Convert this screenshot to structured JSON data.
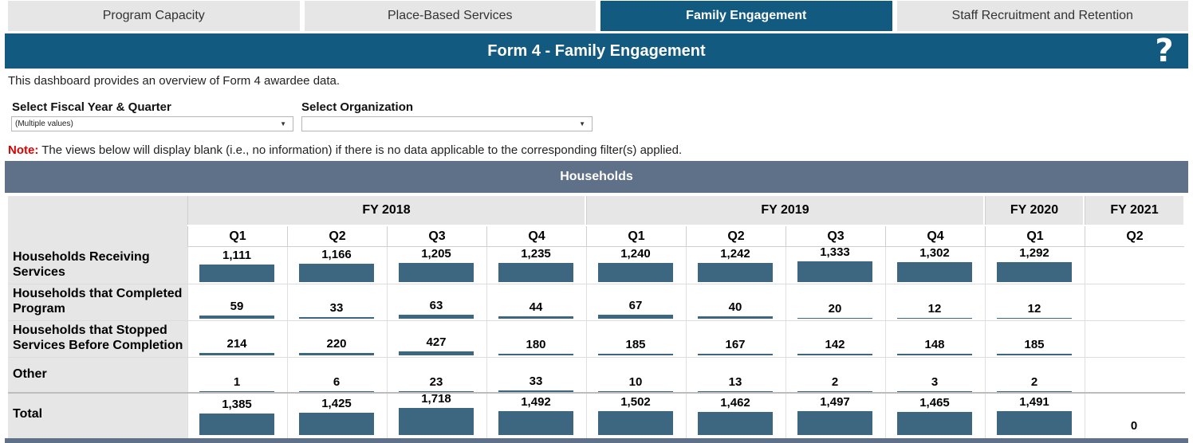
{
  "tabs": [
    {
      "label": "Program Capacity",
      "active": false
    },
    {
      "label": "Place-Based Services",
      "active": false
    },
    {
      "label": "Family Engagement",
      "active": true
    },
    {
      "label": "Staff Recruitment and Retention",
      "active": false
    }
  ],
  "header": {
    "title": "Form 4 - Family Engagement",
    "help_icon": "question-mark-icon"
  },
  "description": "This dashboard provides an overview of Form 4 awardee data.",
  "filters": {
    "fiscal_label": "Select Fiscal Year & Quarter",
    "fiscal_value": "(Multiple values)",
    "org_label": "Select Organization",
    "org_value": ""
  },
  "note": {
    "label": "Note:",
    "text": " The views below will display blank (i.e., no information) if there is no data applicable to the corresponding filter(s) applied."
  },
  "section_title": "Households",
  "colors": {
    "accent": "#135a80",
    "section": "#5f7188",
    "bar": "#3d6680",
    "note": "#e00000"
  },
  "fiscal_years": [
    {
      "label": "FY 2018",
      "quarters": [
        "Q1",
        "Q2",
        "Q3",
        "Q4"
      ]
    },
    {
      "label": "FY 2019",
      "quarters": [
        "Q1",
        "Q2",
        "Q3",
        "Q4"
      ]
    },
    {
      "label": "FY 2020",
      "quarters": [
        "Q1"
      ]
    },
    {
      "label": "FY 2021",
      "quarters": [
        "Q2"
      ]
    }
  ],
  "rows": [
    {
      "label": "Households Receiving Services",
      "values": [
        "1,111",
        "1,166",
        "1,205",
        "1,235",
        "1,240",
        "1,242",
        "1,333",
        "1,302",
        "1,292",
        ""
      ]
    },
    {
      "label": "Households that Completed Program",
      "values": [
        "59",
        "33",
        "63",
        "44",
        "67",
        "40",
        "20",
        "12",
        "12",
        ""
      ]
    },
    {
      "label": "Households that Stopped Services Before Completion",
      "values": [
        "214",
        "220",
        "427",
        "180",
        "185",
        "167",
        "142",
        "148",
        "185",
        ""
      ]
    },
    {
      "label": "Other",
      "values": [
        "1",
        "6",
        "23",
        "33",
        "10",
        "13",
        "2",
        "3",
        "2",
        ""
      ]
    },
    {
      "label": "Total",
      "values": [
        "1,385",
        "1,425",
        "1,718",
        "1,492",
        "1,502",
        "1,462",
        "1,497",
        "1,465",
        "1,491",
        "0"
      ]
    }
  ]
}
